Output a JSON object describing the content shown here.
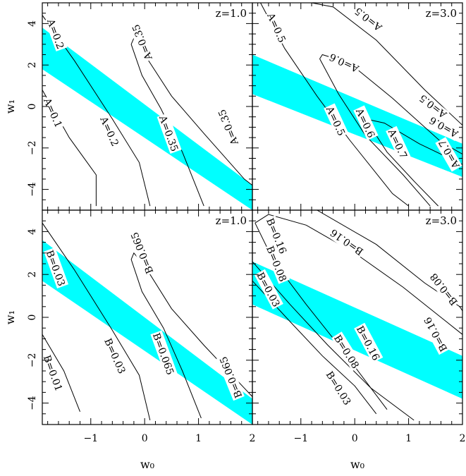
{
  "chart_data": [
    {
      "type": "contour",
      "panel": "top-left",
      "title": "z=1.0",
      "ylabel": "w₁",
      "xlabel": "",
      "xlim": [
        -1.9,
        2.0
      ],
      "ylim": [
        -5,
        5
      ],
      "band": {
        "color": "#00ffff",
        "upper": [
          [
            -1.9,
            3.8
          ],
          [
            2.0,
            -3.8
          ]
        ],
        "lower": [
          [
            -1.9,
            1.8
          ],
          [
            2.0,
            -5.0
          ]
        ]
      },
      "contours": [
        {
          "label": "A=0.2",
          "points": [
            [
              -1.9,
              4.4
            ],
            [
              -1.3,
              2.2
            ],
            [
              -0.6,
              -0.6
            ],
            [
              -0.1,
              -2.7
            ],
            [
              0.1,
              -4.8
            ]
          ],
          "label_at": [
            -1.65,
            3.5
          ],
          "rot": 70
        },
        {
          "label": "A=0.2",
          "points": [],
          "label_at": [
            -0.65,
            -1.2
          ],
          "rot": 66
        },
        {
          "label": "A=0.1",
          "points": [
            [
              -1.9,
              0.8
            ],
            [
              -1.4,
              -1.5
            ],
            [
              -0.9,
              -3.3
            ],
            [
              -0.9,
              -4.8
            ]
          ],
          "label_at": [
            -1.7,
            -0.3
          ],
          "rot": 66
        },
        {
          "label": "A=0.35",
          "points": [
            [
              -0.25,
              3.0
            ],
            [
              -0.2,
              3.3
            ],
            [
              0.0,
              2.5
            ],
            [
              0.5,
              0.5
            ],
            [
              1.1,
              -1.3
            ],
            [
              1.85,
              -3.5
            ],
            [
              2.0,
              -3.8
            ]
          ],
          "label_at": [
            -0.05,
            3.1
          ],
          "rot": 248
        },
        {
          "label": "A=0.35",
          "points": [
            [
              -0.25,
              3.0
            ],
            [
              -0.05,
              1.5
            ],
            [
              0.3,
              -0.1
            ],
            [
              0.7,
              -2.2
            ],
            [
              1.1,
              -4.8
            ]
          ],
          "label_at": [
            0.45,
            -1.3
          ],
          "rot": 70
        },
        {
          "label": "A=0.35",
          "points": [],
          "label_at": [
            1.55,
            -1.0
          ],
          "rot": 248
        }
      ],
      "xticks": [
        -1,
        0,
        1,
        2
      ],
      "yticks": [
        -4,
        -2,
        0,
        2,
        4
      ]
    },
    {
      "type": "contour",
      "panel": "top-right",
      "title": "z=3.0",
      "ylabel": "",
      "xlabel": "",
      "xlim": [
        -1.9,
        2.0
      ],
      "ylim": [
        -5,
        5
      ],
      "band": {
        "color": "#00ffff",
        "upper": [
          [
            -1.9,
            2.5
          ],
          [
            2.0,
            -1.8
          ]
        ],
        "lower": [
          [
            -1.9,
            0.6
          ],
          [
            2.0,
            -3.4
          ]
        ]
      },
      "contours": [
        {
          "label": "A=0.5",
          "points": [
            [
              -1.75,
              5.0
            ],
            [
              -1.3,
              2.8
            ],
            [
              -0.7,
              0.5
            ],
            [
              -0.1,
              -1.6
            ],
            [
              0.7,
              -4.2
            ],
            [
              1.0,
              -4.8
            ]
          ],
          "label_at": [
            -1.45,
            3.8
          ],
          "rot": 66
        },
        {
          "label": "A=0.5",
          "points": [
            [
              -0.8,
              5.0
            ],
            [
              -0.4,
              4.8
            ],
            [
              0.4,
              3.2
            ],
            [
              1.3,
              0.8
            ],
            [
              2.0,
              -0.9
            ]
          ],
          "label_at": [
            0.25,
            4.2
          ],
          "rot": 218
        },
        {
          "label": "A=0.5",
          "points": [],
          "label_at": [
            1.45,
            0.0
          ],
          "rot": 218
        },
        {
          "label": "A=0.6",
          "points": [
            [
              -0.65,
              2.3
            ],
            [
              -0.6,
              2.5
            ],
            [
              -0.1,
              2.1
            ],
            [
              0.7,
              0.4
            ],
            [
              1.6,
              -1.7
            ],
            [
              2.0,
              -2.3
            ]
          ],
          "label_at": [
            -0.2,
            2.1
          ],
          "rot": 205
        },
        {
          "label": "A=0.6",
          "points": [
            [
              -0.65,
              2.3
            ],
            [
              -0.3,
              0.6
            ],
            [
              0.2,
              -1.4
            ],
            [
              0.9,
              -3.3
            ],
            [
              1.4,
              -4.8
            ]
          ],
          "label_at": [
            0.2,
            -0.8
          ],
          "rot": 65
        },
        {
          "label": "A=0.6",
          "points": [],
          "label_at": [
            1.65,
            -1.0
          ],
          "rot": 210
        },
        {
          "label": "A=0.7",
          "points": [
            [
              0.2,
              -0.6
            ],
            [
              0.55,
              -0.8
            ],
            [
              1.2,
              -1.8
            ],
            [
              2.0,
              -2.8
            ]
          ],
          "label_at": [
            1.75,
            -2.3
          ],
          "rot": 240
        },
        {
          "label": "A=0.7",
          "points": [
            [
              0.2,
              -0.6
            ],
            [
              0.6,
              -2.2
            ],
            [
              1.1,
              -3.6
            ],
            [
              1.55,
              -4.8
            ]
          ],
          "label_at": [
            0.8,
            -1.8
          ],
          "rot": 65
        },
        {
          "label": "A=0.5",
          "points": [],
          "label_at": [
            -0.35,
            -0.7
          ],
          "rot": 65
        }
      ],
      "xticks": [
        -1,
        0,
        1,
        2
      ],
      "yticks": [
        -4,
        -2,
        0,
        2,
        4
      ]
    },
    {
      "type": "contour",
      "panel": "bottom-left",
      "title": "z=1.0",
      "ylabel": "w₁",
      "xlabel": "w₀",
      "xlim": [
        -1.9,
        2.0
      ],
      "ylim": [
        -5,
        5
      ],
      "band": {
        "color": "#00ffff",
        "upper": [
          [
            -1.9,
            3.6
          ],
          [
            2.0,
            -3.8
          ]
        ],
        "lower": [
          [
            -1.9,
            1.7
          ],
          [
            2.0,
            -5.0
          ]
        ]
      },
      "contours": [
        {
          "label": "B=0.03",
          "points": [
            [
              -1.9,
              4.4
            ],
            [
              -1.3,
              2.2
            ],
            [
              -0.6,
              -0.6
            ],
            [
              -0.1,
              -2.7
            ],
            [
              0.1,
              -4.8
            ]
          ],
          "label_at": [
            -1.65,
            2.3
          ],
          "rot": 70
        },
        {
          "label": "B=0.03",
          "points": [],
          "label_at": [
            -0.55,
            -1.8
          ],
          "rot": 66
        },
        {
          "label": "B=0.01",
          "points": [
            [
              -1.9,
              -0.8
            ],
            [
              -1.5,
              -2.5
            ],
            [
              -1.2,
              -4.4
            ]
          ],
          "label_at": [
            -1.7,
            -2.6
          ],
          "rot": 70
        },
        {
          "label": "B=0.065",
          "points": [
            [
              -0.25,
              2.7
            ],
            [
              -0.2,
              3.0
            ],
            [
              0.0,
              2.4
            ],
            [
              0.5,
              0.4
            ],
            [
              1.1,
              -1.3
            ],
            [
              1.85,
              -3.3
            ],
            [
              2.0,
              -3.7
            ]
          ],
          "label_at": [
            -0.05,
            3.0
          ],
          "rot": 248
        },
        {
          "label": "B=0.065",
          "points": [
            [
              -0.25,
              2.7
            ],
            [
              -0.05,
              1.2
            ],
            [
              0.35,
              -0.5
            ],
            [
              0.7,
              -2.5
            ],
            [
              1.05,
              -4.7
            ]
          ],
          "label_at": [
            0.35,
            -1.7
          ],
          "rot": 70
        },
        {
          "label": "B=0.065",
          "points": [],
          "label_at": [
            1.6,
            -2.8
          ],
          "rot": 248
        }
      ],
      "xticks": [
        -1,
        0,
        1,
        2
      ],
      "yticks": [
        -4,
        -2,
        0,
        2,
        4
      ]
    },
    {
      "type": "contour",
      "panel": "bottom-right",
      "title": "z=3.0",
      "ylabel": "",
      "xlabel": "w₀",
      "xlim": [
        -1.9,
        2.0
      ],
      "ylim": [
        -5,
        5
      ],
      "band": {
        "color": "#00ffff",
        "upper": [
          [
            -1.9,
            2.6
          ],
          [
            2.0,
            -1.8
          ]
        ],
        "lower": [
          [
            -1.9,
            0.6
          ],
          [
            2.0,
            -3.8
          ]
        ]
      },
      "contours": [
        {
          "label": "B=0.16",
          "points": [
            [
              -1.85,
              4.4
            ],
            [
              -1.5,
              2.6
            ],
            [
              -0.9,
              0.6
            ],
            [
              -0.3,
              -1.3
            ],
            [
              0.6,
              -4.3
            ]
          ],
          "label_at": [
            -1.45,
            3.8
          ],
          "rot": 68
        },
        {
          "label": "B=0.16",
          "points": [
            [
              -1.85,
              4.4
            ],
            [
              -1.6,
              4.8
            ],
            [
              -0.9,
              4.3
            ],
            [
              0.0,
              3.0
            ],
            [
              0.9,
              1.4
            ],
            [
              1.6,
              0.0
            ],
            [
              2.0,
              -0.8
            ]
          ],
          "label_at": [
            -0.15,
            3.5
          ],
          "rot": 215
        },
        {
          "label": "B=0.16",
          "points": [],
          "label_at": [
            1.5,
            -0.8
          ],
          "rot": 242
        },
        {
          "label": "B=0.08",
          "points": [
            [
              -0.7,
              5.0
            ],
            [
              0.4,
              3.4
            ],
            [
              1.3,
              1.6
            ],
            [
              1.95,
              0.5
            ],
            [
              2.0,
              0.3
            ]
          ],
          "label_at": [
            1.65,
            1.3
          ],
          "rot": 232
        },
        {
          "label": "B=0.08",
          "points": [
            [
              -1.9,
              2.6
            ],
            [
              -1.2,
              0.6
            ],
            [
              -0.5,
              -1.3
            ],
            [
              0.3,
              -3.3
            ],
            [
              1.1,
              -4.8
            ]
          ],
          "label_at": [
            -1.45,
            2.5
          ],
          "rot": 68
        },
        {
          "label": "B=0.08",
          "points": [],
          "label_at": [
            -0.15,
            -1.6
          ],
          "rot": 58
        },
        {
          "label": "B=0.03",
          "points": [
            [
              -1.9,
              1.7
            ],
            [
              -1.2,
              -0.2
            ],
            [
              -0.6,
              -1.8
            ],
            [
              0.0,
              -3.2
            ],
            [
              0.4,
              -4.5
            ]
          ],
          "label_at": [
            -1.6,
            1.3
          ],
          "rot": 62
        },
        {
          "label": "B=0.03",
          "points": [],
          "label_at": [
            -0.3,
            -3.3
          ],
          "rot": 58
        },
        {
          "label": "B=0.16",
          "points": [],
          "label_at": [
            0.25,
            -1.2
          ],
          "rot": 62
        }
      ],
      "xticks": [
        -1,
        0,
        1,
        2
      ],
      "yticks": [
        -4,
        -2,
        0,
        2,
        4
      ]
    }
  ]
}
